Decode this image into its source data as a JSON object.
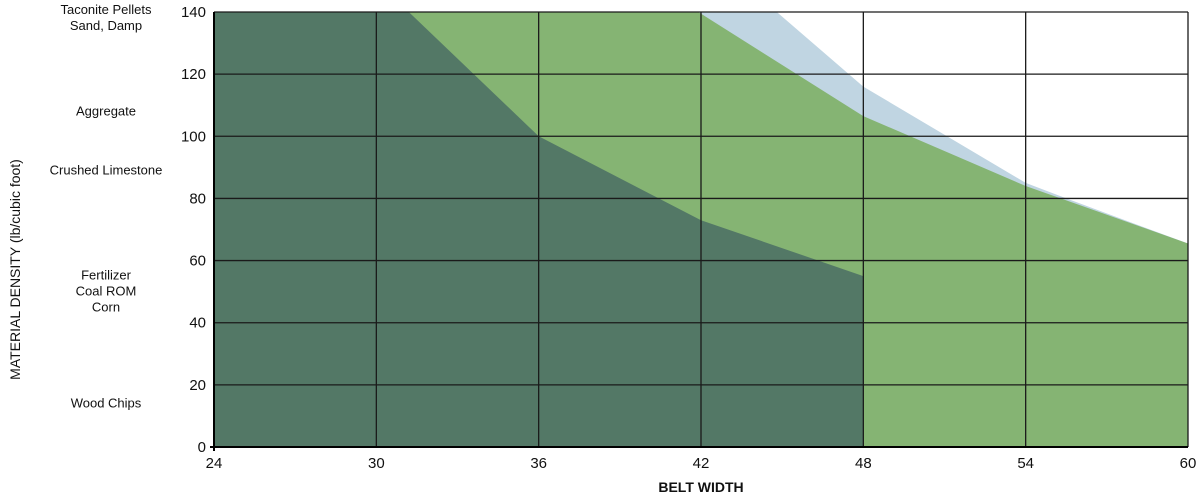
{
  "chart_data": {
    "type": "area",
    "title": "",
    "xlabel": "BELT WIDTH",
    "ylabel": "MATERIAL DENSITY (lb/cubic foot)",
    "xlim": [
      24,
      60
    ],
    "ylim": [
      0,
      140
    ],
    "x_ticks": [
      24,
      30,
      36,
      42,
      48,
      54,
      60
    ],
    "y_ticks": [
      0,
      20,
      40,
      60,
      80,
      100,
      120,
      140
    ],
    "grid": true,
    "series": [
      {
        "color": "#c0d5e2",
        "points": [
          [
            24,
            140
          ],
          [
            44.8,
            140
          ],
          [
            48,
            116
          ],
          [
            54,
            85
          ],
          [
            55.5,
            80
          ],
          [
            60,
            65.5
          ],
          [
            60,
            0
          ],
          [
            24,
            0
          ]
        ]
      },
      {
        "color": "#85b473",
        "points": [
          [
            24,
            140
          ],
          [
            41.9,
            140
          ],
          [
            48,
            106.5
          ],
          [
            54,
            84
          ],
          [
            60,
            65.5
          ],
          [
            60,
            0
          ],
          [
            24,
            0
          ]
        ]
      },
      {
        "color": "#537866",
        "points": [
          [
            24,
            140
          ],
          [
            31.2,
            140
          ],
          [
            36,
            100
          ],
          [
            42,
            73
          ],
          [
            48,
            55
          ],
          [
            48,
            0
          ],
          [
            24,
            0
          ]
        ]
      }
    ],
    "material_labels": [
      {
        "lines": [
          "Taconite Pellets",
          "Sand, Damp"
        ],
        "y": 138
      },
      {
        "lines": [
          "Aggregate"
        ],
        "y": 108
      },
      {
        "lines": [
          "Crushed Limestone"
        ],
        "y": 89
      },
      {
        "lines": [
          "Fertilizer",
          "Coal ROM",
          "Corn"
        ],
        "y": 50
      },
      {
        "lines": [
          "Wood Chips"
        ],
        "y": 14
      }
    ]
  }
}
